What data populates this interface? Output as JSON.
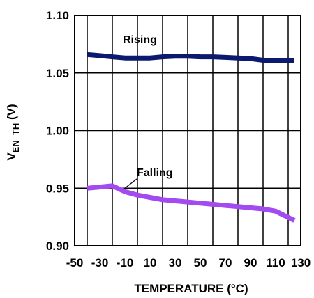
{
  "chart_data": {
    "type": "line",
    "title": "",
    "xlabel": "TEMPERATURE (°C)",
    "ylabel_main": "V",
    "ylabel_sub": "EN_TH",
    "ylabel_unit": " (V)",
    "xlim": [
      -50,
      130
    ],
    "ylim": [
      0.9,
      1.1
    ],
    "x_ticks": [
      "-50",
      "-30",
      "-10",
      "10",
      "30",
      "50",
      "70",
      "90",
      "110",
      "130"
    ],
    "y_ticks": [
      "0.90",
      "0.95",
      "1.00",
      "1.05",
      "1.10"
    ],
    "x_tick_values": [
      -50,
      -30,
      -10,
      10,
      30,
      50,
      70,
      90,
      110,
      130
    ],
    "y_tick_values": [
      0.9,
      0.95,
      1.0,
      1.05,
      1.1
    ],
    "grid": true,
    "series": [
      {
        "name": "Rising",
        "color": "#0b1a6e",
        "x": [
          -40,
          -30,
          -20,
          -10,
          0,
          10,
          20,
          30,
          40,
          50,
          60,
          70,
          80,
          90,
          100,
          110,
          125
        ],
        "y": [
          1.066,
          1.065,
          1.064,
          1.063,
          1.063,
          1.063,
          1.064,
          1.0645,
          1.0645,
          1.064,
          1.064,
          1.0635,
          1.063,
          1.0625,
          1.061,
          1.0605,
          1.0605
        ]
      },
      {
        "name": "Falling",
        "color": "#a24bf0",
        "x": [
          -40,
          -30,
          -20,
          -10,
          0,
          10,
          20,
          30,
          40,
          50,
          60,
          70,
          80,
          90,
          100,
          110,
          125
        ],
        "y": [
          0.95,
          0.951,
          0.952,
          0.947,
          0.944,
          0.942,
          0.94,
          0.939,
          0.938,
          0.937,
          0.936,
          0.935,
          0.934,
          0.933,
          0.932,
          0.93,
          0.922
        ]
      }
    ]
  }
}
